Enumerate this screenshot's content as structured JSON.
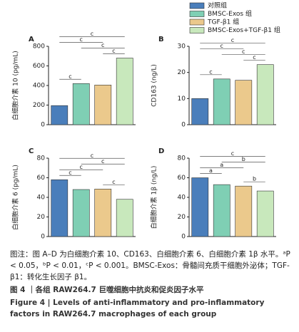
{
  "legend": [
    {
      "name": "对照组",
      "color": "#4a7ebb"
    },
    {
      "name": "BMSC-Exos 组",
      "color": "#7fcfb4"
    },
    {
      "name": "TGF-β1 组",
      "color": "#ebc98c"
    },
    {
      "name": "BMSC-Exos+TGF-β1 组",
      "color": "#c8e8bc"
    }
  ],
  "chart_data": [
    {
      "type": "bar",
      "panel": "A",
      "ylabel": "白细胞介素 10 (pg/mL)",
      "values": [
        195,
        420,
        405,
        680
      ],
      "ylim": [
        0,
        800
      ],
      "yticks": [
        0,
        200,
        400,
        600,
        800
      ],
      "brackets": [
        {
          "from": 0,
          "to": 3,
          "label": "c"
        },
        {
          "from": 1,
          "to": 3,
          "label": "c"
        },
        {
          "from": 2,
          "to": 3,
          "label": "c"
        },
        {
          "from": 0,
          "to": 1,
          "label": "c"
        },
        {
          "from": 0,
          "to": 2,
          "label": "c"
        }
      ]
    },
    {
      "type": "bar",
      "panel": "B",
      "ylabel": "CD163 (ng/L)",
      "values": [
        10,
        17.5,
        17,
        23
      ],
      "ylim": [
        0,
        30
      ],
      "yticks": [
        0,
        10,
        20,
        30
      ],
      "brackets": [
        {
          "from": 0,
          "to": 3,
          "label": "c"
        },
        {
          "from": 1,
          "to": 3,
          "label": "c"
        },
        {
          "from": 2,
          "to": 3,
          "label": "c"
        },
        {
          "from": 0,
          "to": 1,
          "label": "c"
        },
        {
          "from": 0,
          "to": 2,
          "label": "c"
        }
      ]
    },
    {
      "type": "bar",
      "panel": "C",
      "ylabel": "白细胞介素 6 (pg/mL)",
      "values": [
        58,
        48,
        48.5,
        38
      ],
      "ylim": [
        0,
        80
      ],
      "yticks": [
        0,
        20,
        40,
        60,
        80
      ],
      "brackets": [
        {
          "from": 0,
          "to": 3,
          "label": "c"
        },
        {
          "from": 0,
          "to": 1,
          "label": "c"
        },
        {
          "from": 0,
          "to": 2,
          "label": "c"
        },
        {
          "from": 1,
          "to": 3,
          "label": "c"
        },
        {
          "from": 2,
          "to": 3,
          "label": "c"
        }
      ]
    },
    {
      "type": "bar",
      "panel": "D",
      "ylabel": "白细胞介素 1β (ng/L)",
      "values": [
        60,
        53,
        51.5,
        46.5
      ],
      "ylim": [
        0,
        80
      ],
      "yticks": [
        0,
        20,
        40,
        60,
        80
      ],
      "brackets": [
        {
          "from": 0,
          "to": 3,
          "label": "c"
        },
        {
          "from": 0,
          "to": 1,
          "label": "a"
        },
        {
          "from": 0,
          "to": 2,
          "label": "a"
        },
        {
          "from": 1,
          "to": 3,
          "label": "b"
        },
        {
          "from": 2,
          "to": 3,
          "label": "b"
        }
      ]
    }
  ],
  "caption": {
    "note": "图注：图 A–D 为白细胞介素 10、CD163、白细胞介素 6、白细胞介素 1β 水平。ᵃP < 0.05，ᵇP < 0.01，ᶜP < 0.001。BMSC-Exos：骨髓间充质干细胞外泌体；TGF-β1：转化生长因子 β1。",
    "title_cn": "图 4 ｜各组 RAW264.7 巨噬细胞中抗炎和促炎因子水平",
    "title_en": "Figure 4 | Levels of anti-inflammatory and pro-inflammatory factors in RAW264.7 macrophages of each group"
  }
}
